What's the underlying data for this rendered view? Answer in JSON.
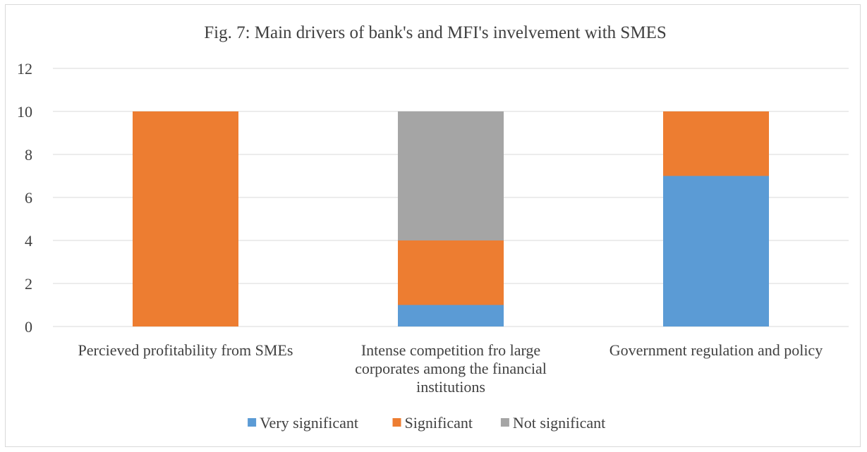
{
  "chart_data": {
    "type": "bar",
    "stacked": true,
    "title": "Fig. 7: Main drivers of bank's and MFI's invelvement with SMES",
    "xlabel": "",
    "ylabel": "",
    "categories": [
      [
        "Percieved profitability from SMEs"
      ],
      [
        "Intense competition fro large",
        "corporates among the financial",
        "institutions"
      ],
      [
        "Government regulation and policy"
      ]
    ],
    "series": [
      {
        "name": "Very significant",
        "color": "#5b9bd5",
        "values": [
          0,
          1,
          7
        ]
      },
      {
        "name": "Significant",
        "color": "#ed7d31",
        "values": [
          10,
          3,
          3
        ]
      },
      {
        "name": "Not significant",
        "color": "#a5a5a5",
        "values": [
          0,
          6,
          0
        ]
      }
    ],
    "ylim": [
      0,
      12
    ],
    "yticks": [
      "0",
      "2",
      "4",
      "6",
      "8",
      "10",
      "12"
    ],
    "grid": true,
    "legend_position": "bottom"
  }
}
